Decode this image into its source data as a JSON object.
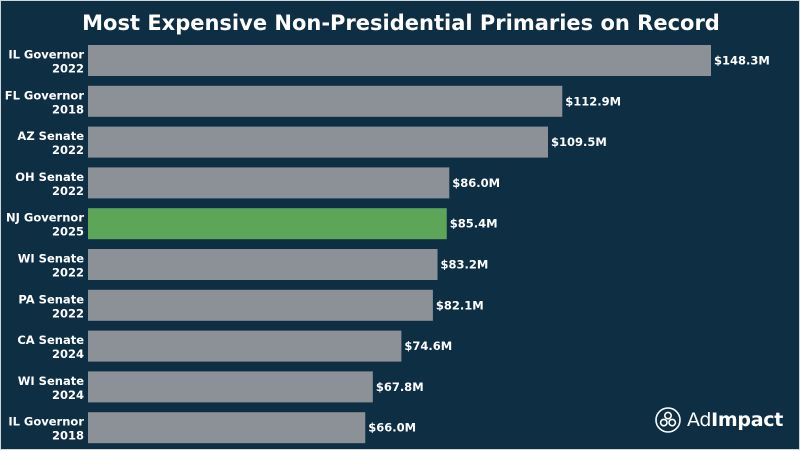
{
  "brand": {
    "name_part1": "Ad",
    "name_part2": "Impact"
  },
  "colors": {
    "background": "#0e2e44",
    "bar_default": "#8b9196",
    "bar_highlight": "#5ea657",
    "text": "#ffffff"
  },
  "chart_data": {
    "type": "bar",
    "orientation": "horizontal",
    "title": "Most Expensive Non-Presidential Primaries on Record",
    "xlabel": "",
    "ylabel": "",
    "unit": "$M",
    "grid": false,
    "legend": "none",
    "highlight_index": 4,
    "categories": [
      [
        "IL Governor",
        "2022"
      ],
      [
        "FL Governor",
        "2018"
      ],
      [
        "AZ Senate",
        "2022"
      ],
      [
        "OH Senate",
        "2022"
      ],
      [
        "NJ Governor",
        "2025"
      ],
      [
        "WI Senate",
        "2022"
      ],
      [
        "PA Senate",
        "2022"
      ],
      [
        "CA Senate",
        "2024"
      ],
      [
        "WI Senate",
        "2024"
      ],
      [
        "IL Governor",
        "2018"
      ]
    ],
    "values": [
      148.3,
      112.9,
      109.5,
      86.0,
      85.4,
      83.2,
      82.1,
      74.6,
      67.8,
      66.0
    ],
    "value_labels": [
      "$148.3M",
      "$112.9M",
      "$109.5M",
      "$86.0M",
      "$85.4M",
      "$83.2M",
      "$82.1M",
      "$74.6M",
      "$67.8M",
      "$66.0M"
    ]
  }
}
